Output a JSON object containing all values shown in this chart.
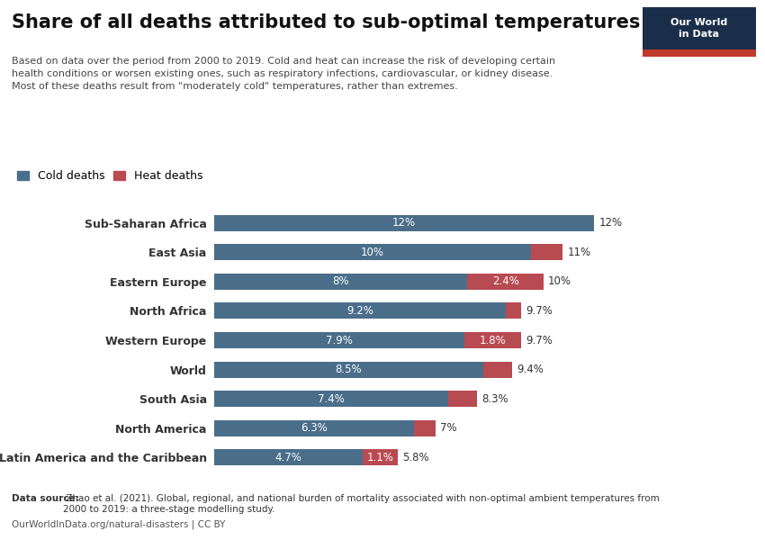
{
  "title": "Share of all deaths attributed to sub-optimal temperatures",
  "subtitle_lines": [
    "Based on data over the period from 2000 to 2019. Cold and heat can increase the risk of developing certain",
    "health conditions or worsen existing ones, such as respiratory infections, cardiovascular, or kidney disease.",
    "Most of these deaths result from \"moderately cold\" temperatures, rather than extremes."
  ],
  "categories": [
    "Sub-Saharan Africa",
    "East Asia",
    "Eastern Europe",
    "North Africa",
    "Western Europe",
    "World",
    "South Asia",
    "North America",
    "Latin America and the Caribbean"
  ],
  "cold_values": [
    12.0,
    10.0,
    8.0,
    9.2,
    7.9,
    8.5,
    7.4,
    6.3,
    4.7
  ],
  "heat_values": [
    0.0,
    1.0,
    2.4,
    0.5,
    1.8,
    0.9,
    0.9,
    0.7,
    1.1
  ],
  "cold_labels": [
    "12%",
    "10%",
    "8%",
    "9.2%",
    "7.9%",
    "8.5%",
    "7.4%",
    "6.3%",
    "4.7%"
  ],
  "heat_labels": [
    "",
    "",
    "2.4%",
    "",
    "1.8%",
    "",
    "",
    "",
    "1.1%"
  ],
  "total_labels": [
    "12%",
    "11%",
    "10%",
    "9.7%",
    "9.7%",
    "9.4%",
    "8.3%",
    "7%",
    "5.8%"
  ],
  "cold_color": "#4a6e8a",
  "heat_color": "#b84a52",
  "background_color": "#ffffff",
  "cold_legend": "Cold deaths",
  "heat_legend": "Heat deaths",
  "datasource_bold": "Data source:",
  "datasource_text": " Zhao et al. (2021). Global, regional, and national burden of mortality associated with non-optimal ambient temperatures from\n2000 to 2019: a three-stage modelling study.",
  "datasource_url": "OurWorldInData.org/natural-disasters | CC BY",
  "owid_box_color": "#1a2e4a",
  "owid_stripe_color": "#c0392b",
  "owid_text": "Our World\nin Data"
}
